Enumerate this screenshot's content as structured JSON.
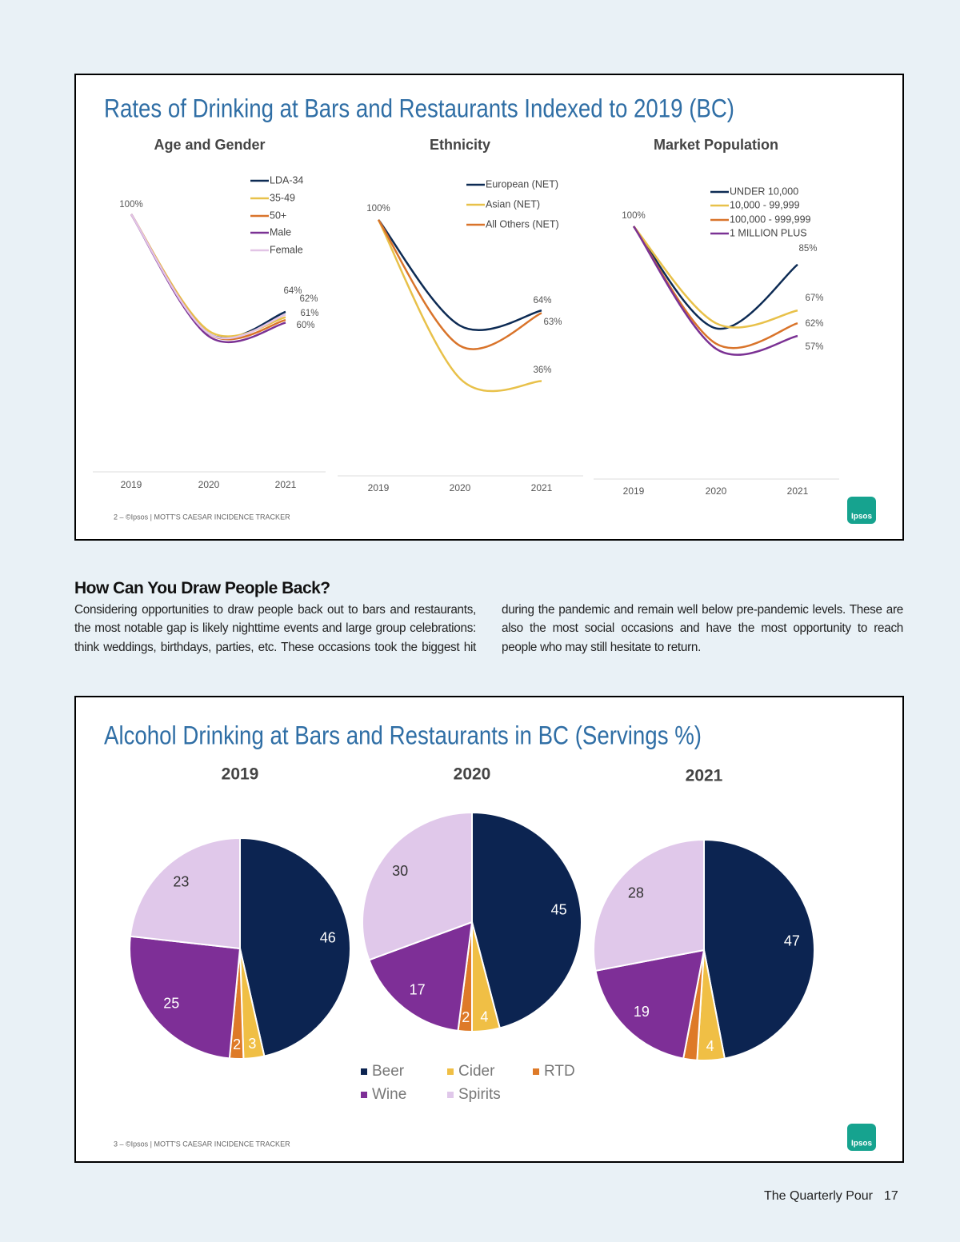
{
  "slides": [
    {
      "title": "Rates of Drinking at Bars and Restaurants Indexed to 2019 (BC)",
      "footer": "2 –  ©Ipsos | MOTT'S CAESAR INCIDENCE TRACKER",
      "logo": "Ipsos"
    },
    {
      "title": "Alcohol Drinking at Bars and Restaurants in BC (Servings %)",
      "footer": "3 –  ©Ipsos | MOTT'S CAESAR INCIDENCE TRACKER",
      "logo": "Ipsos"
    }
  ],
  "chart_data": [
    {
      "type": "line",
      "title": "Age and Gender",
      "categories": [
        "2019",
        "2020",
        "2021"
      ],
      "ylim": [
        0,
        105
      ],
      "series": [
        {
          "name": "LDA-34",
          "color": "#0d2b54",
          "values": [
            100,
            56,
            64
          ],
          "value_labels": [
            "100%",
            null,
            "64%"
          ]
        },
        {
          "name": "35-49",
          "color": "#e8c14a",
          "values": [
            100,
            57,
            62
          ],
          "value_labels": [
            null,
            null,
            "62%"
          ]
        },
        {
          "name": "50+",
          "color": "#d9742b",
          "values": [
            100,
            56,
            61
          ],
          "value_labels": [
            null,
            null,
            "61%"
          ]
        },
        {
          "name": "Male",
          "color": "#7b3294",
          "values": [
            100,
            55,
            60
          ],
          "value_labels": [
            null,
            null,
            "60%"
          ]
        },
        {
          "name": "Female",
          "color": "#e2c4e6",
          "values": [
            100,
            56,
            63
          ]
        }
      ]
    },
    {
      "type": "line",
      "title": "Ethnicity",
      "categories": [
        "2019",
        "2020",
        "2021"
      ],
      "ylim": [
        0,
        105
      ],
      "series": [
        {
          "name": "European (NET)",
          "color": "#0d2b54",
          "values": [
            100,
            58,
            64
          ],
          "value_labels": [
            "100%",
            null,
            "64%"
          ]
        },
        {
          "name": "Asian (NET)",
          "color": "#e8c14a",
          "values": [
            100,
            37,
            36
          ],
          "value_labels": [
            null,
            null,
            "36%"
          ]
        },
        {
          "name": "All Others (NET)",
          "color": "#d9742b",
          "values": [
            100,
            50,
            63
          ],
          "value_labels": [
            null,
            null,
            "63%"
          ]
        }
      ]
    },
    {
      "type": "line",
      "title": "Market Population",
      "categories": [
        "2019",
        "2020",
        "2021"
      ],
      "ylim": [
        0,
        105
      ],
      "series": [
        {
          "name": "UNDER 10,000",
          "color": "#0d2b54",
          "values": [
            100,
            60,
            85
          ],
          "value_labels": [
            "100%",
            null,
            "85%"
          ]
        },
        {
          "name": "10,000 - 99,999",
          "color": "#e8c14a",
          "values": [
            100,
            62,
            67
          ],
          "value_labels": [
            null,
            null,
            "67%"
          ]
        },
        {
          "name": "100,000 - 999,999",
          "color": "#d9742b",
          "values": [
            100,
            54,
            62
          ],
          "value_labels": [
            null,
            null,
            "62%"
          ]
        },
        {
          "name": "1 MILLION PLUS",
          "color": "#7b3294",
          "values": [
            100,
            52,
            57
          ],
          "value_labels": [
            null,
            null,
            "57%"
          ]
        }
      ]
    },
    {
      "type": "pie",
      "title": "2019",
      "categories": [
        "Beer",
        "Cider",
        "RTD",
        "Wine",
        "Spirits"
      ],
      "colors": [
        "#0c2451",
        "#f0bf45",
        "#de7a28",
        "#7e2f97",
        "#e0c8ea"
      ],
      "values": [
        46,
        3,
        2,
        25,
        23
      ]
    },
    {
      "type": "pie",
      "title": "2020",
      "categories": [
        "Beer",
        "Cider",
        "RTD",
        "Wine",
        "Spirits"
      ],
      "colors": [
        "#0c2451",
        "#f0bf45",
        "#de7a28",
        "#7e2f97",
        "#e0c8ea"
      ],
      "values": [
        45,
        4,
        2,
        17,
        30
      ]
    },
    {
      "type": "pie",
      "title": "2021",
      "categories": [
        "Beer",
        "Cider",
        "RTD",
        "Wine",
        "Spirits"
      ],
      "colors": [
        "#0c2451",
        "#f0bf45",
        "#de7a28",
        "#7e2f97",
        "#e0c8ea"
      ],
      "values": [
        47,
        4,
        2,
        19,
        28
      ],
      "value_labels": [
        "47",
        "4",
        null,
        "19",
        "28"
      ]
    }
  ],
  "article": {
    "heading": "How Can You Draw People Back?",
    "body": "Considering opportunities to draw people back out to bars and restaurants, the most notable gap is likely nighttime events and large group celebrations: think weddings, birthdays, parties, etc. These occasions took the biggest hit during the pandemic and remain well below pre-pandemic levels. These are also the most social occasions and have the most opportunity to reach people who may still hesitate to return."
  },
  "page_footer": {
    "publication": "The Quarterly Pour",
    "page_number": "17"
  }
}
